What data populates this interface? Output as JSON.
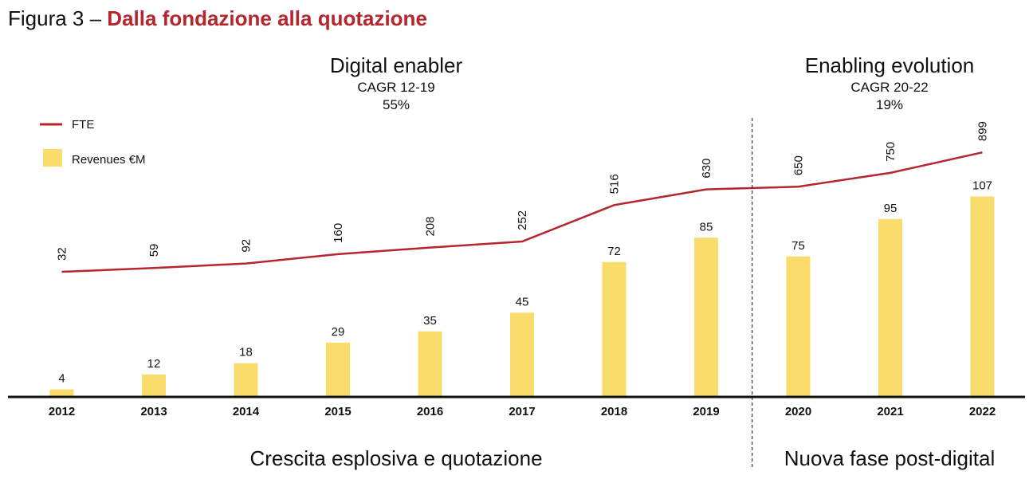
{
  "figure": {
    "title_lead": "Figura 3 – ",
    "title_main": "Dalla fondazione alla quotazione"
  },
  "phases": [
    {
      "title": "Digital enabler",
      "cagr_label": "CAGR 12-19",
      "cagr_value": "55%",
      "footer": "Crescita esplosiva e quotazione"
    },
    {
      "title": "Enabling evolution",
      "cagr_label": "CAGR 20-22",
      "cagr_value": "19%",
      "footer": "Nuova fase post-digital"
    }
  ],
  "legend": {
    "line": "FTE",
    "bar": "Revenues €M"
  },
  "colors": {
    "bar": "#f9dc6b",
    "line": "#b5262d",
    "title_accent": "#b5262d",
    "axis": "#111111"
  },
  "chart_data": {
    "type": "bar",
    "categories": [
      "2012",
      "2013",
      "2014",
      "2015",
      "2016",
      "2017",
      "2018",
      "2019",
      "2020",
      "2021",
      "2022"
    ],
    "series": [
      {
        "name": "Revenues €M",
        "type": "bar",
        "values": [
          4,
          12,
          18,
          29,
          35,
          45,
          72,
          85,
          75,
          95,
          107
        ]
      },
      {
        "name": "FTE",
        "type": "line",
        "values": [
          32,
          59,
          92,
          160,
          208,
          252,
          516,
          630,
          650,
          750,
          899
        ]
      }
    ],
    "separator_after": "2019",
    "legend_position": "top-left",
    "grid": false
  }
}
